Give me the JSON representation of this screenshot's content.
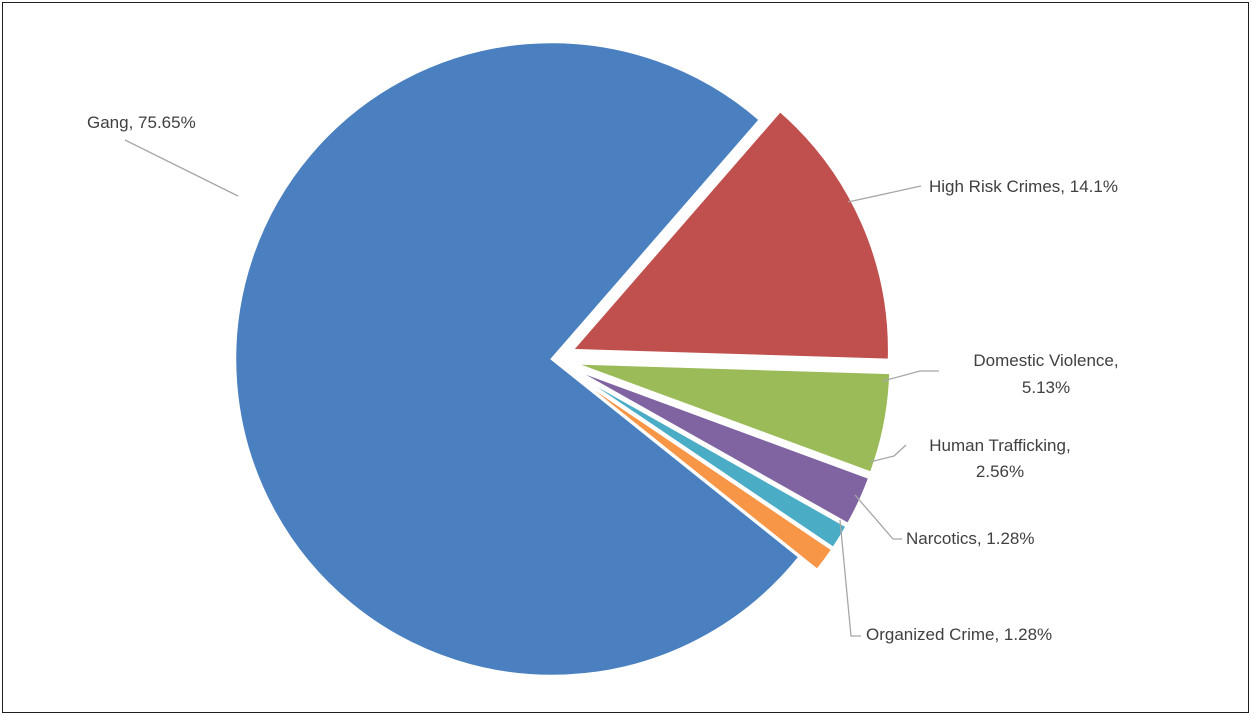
{
  "chart_data": {
    "type": "pie",
    "title": "",
    "slices": [
      {
        "label": "Gang",
        "value": 75.65,
        "display": "Gang, 75.65%",
        "color": "#4a80bf",
        "exploded": false
      },
      {
        "label": "High Risk Crimes",
        "value": 14.1,
        "display": "High Risk Crimes, 14.1%",
        "color": "#c0504d",
        "exploded": true
      },
      {
        "label": "Domestic Violence",
        "value": 5.13,
        "display": [
          "Domestic Violence,",
          "5.13%"
        ],
        "color": "#9bbb59",
        "exploded": true
      },
      {
        "label": "Human Trafficking",
        "value": 2.56,
        "display": [
          "Human Trafficking,",
          "2.56%"
        ],
        "color": "#8064a2",
        "exploded": true
      },
      {
        "label": "Narcotics",
        "value": 1.28,
        "display": "Narcotics, 1.28%",
        "color": "#4bacc6",
        "exploded": true
      },
      {
        "label": "Organized Crime",
        "value": 1.28,
        "display": "Organized Crime, 1.28%",
        "color": "#f79646",
        "exploded": true
      }
    ],
    "legend": "none",
    "data_labels": "outside-with-leader-lines"
  }
}
